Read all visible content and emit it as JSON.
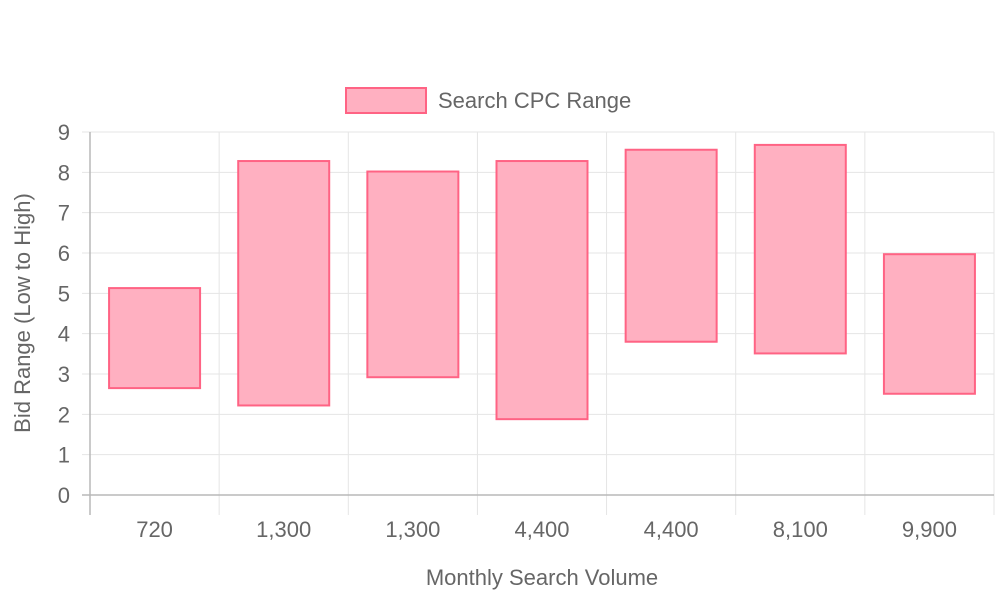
{
  "chart_data": {
    "type": "bar",
    "subtype": "floating-range",
    "categories": [
      "720",
      "1,300",
      "1,300",
      "4,400",
      "4,400",
      "8,100",
      "9,900"
    ],
    "series": [
      {
        "name": "Search CPC Range",
        "ranges": [
          [
            2.65,
            5.13
          ],
          [
            2.22,
            8.28
          ],
          [
            2.92,
            8.02
          ],
          [
            1.88,
            8.28
          ],
          [
            3.8,
            8.56
          ],
          [
            3.51,
            8.68
          ],
          [
            2.51,
            5.97
          ]
        ]
      }
    ],
    "xlabel": "Monthly Search Volume",
    "ylabel": "Bid Range (Low to High)",
    "ylim": [
      0,
      9
    ],
    "yticks": [
      "0",
      "1",
      "2",
      "3",
      "4",
      "5",
      "6",
      "7",
      "8",
      "9"
    ],
    "grid": true,
    "legend_position": "top",
    "colors": {
      "bar_fill": "#ffb0c1",
      "bar_stroke": "#ff6384"
    }
  }
}
